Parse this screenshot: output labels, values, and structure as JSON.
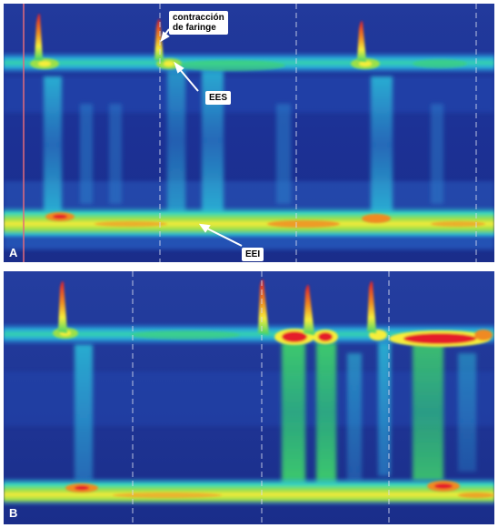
{
  "panels": [
    {
      "label": "A",
      "annotations": {
        "faringe_line1": "contracción",
        "faringe_line2": "de faringe",
        "ees": "EES",
        "eei": "EEI"
      }
    },
    {
      "label": "B"
    }
  ],
  "colors": {
    "background": "#1a2f8f",
    "cyan": "#2ed0e0",
    "green": "#3fd26a",
    "yellow": "#f6ee3a",
    "red": "#e51e2a",
    "marker_line": "#e36b7a"
  }
}
